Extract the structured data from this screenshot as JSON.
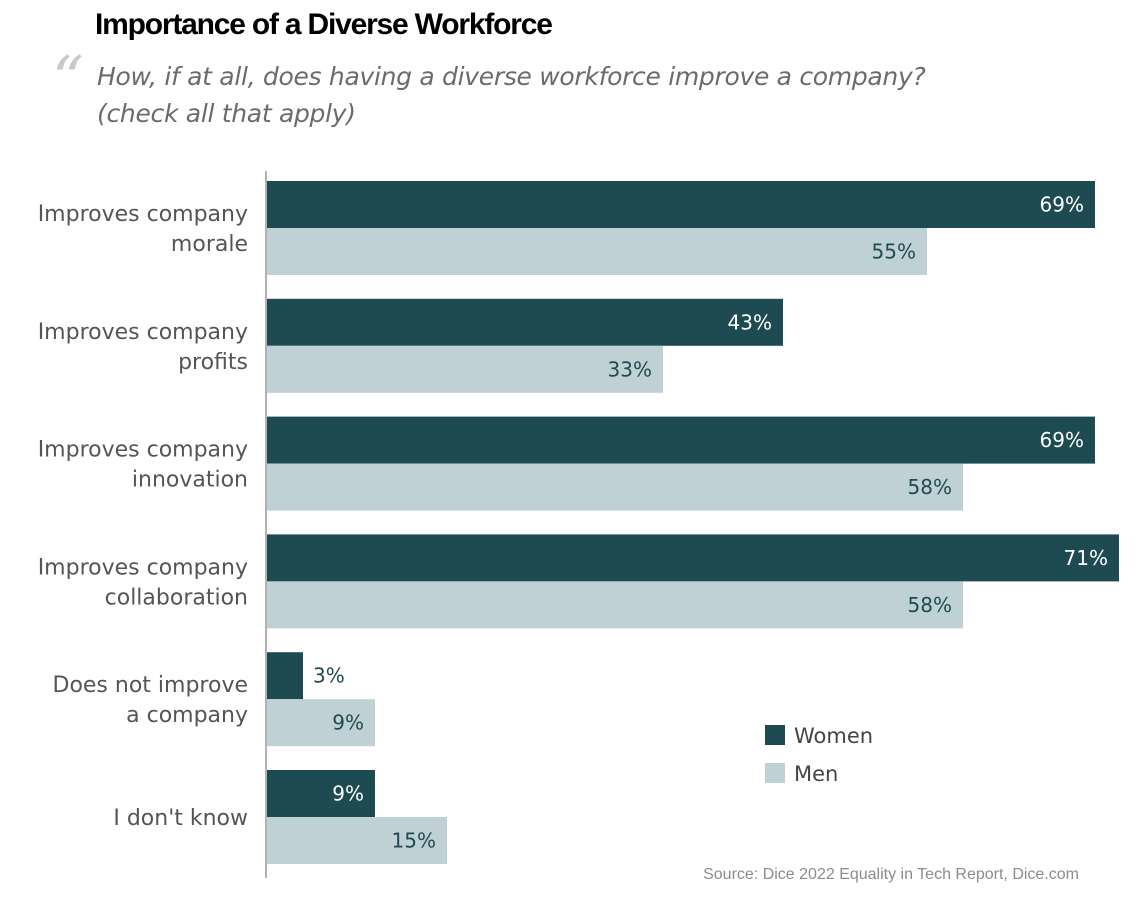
{
  "title": "Importance of a Diverse Workforce",
  "quote_mark": "“",
  "subtitle": [
    "How, if at all, does having a diverse workforce improve a company?",
    "(check all that apply)"
  ],
  "source": "Source: Dice 2022 Equality in Tech Report, Dice.com",
  "colors": {
    "women": "#1e4a52",
    "men": "#c0d1d5",
    "women_label": "#ffffff",
    "men_label": "#1e4a52",
    "axis": "#999999"
  },
  "chart_data": {
    "type": "bar",
    "orientation": "horizontal",
    "categories": [
      [
        "Improves company",
        "morale"
      ],
      [
        "Improves company",
        "profits"
      ],
      [
        "Improves company",
        "innovation"
      ],
      [
        "Improves company",
        "collaboration"
      ],
      [
        "Does not improve",
        "a company"
      ],
      [
        "I don't know"
      ]
    ],
    "series": [
      {
        "name": "Women",
        "values": [
          69,
          43,
          69,
          71,
          3,
          9
        ]
      },
      {
        "name": "Men",
        "values": [
          55,
          33,
          58,
          58,
          9,
          15
        ]
      }
    ],
    "value_suffix": "%",
    "legend_placement": "bottom-right",
    "grid": false
  }
}
